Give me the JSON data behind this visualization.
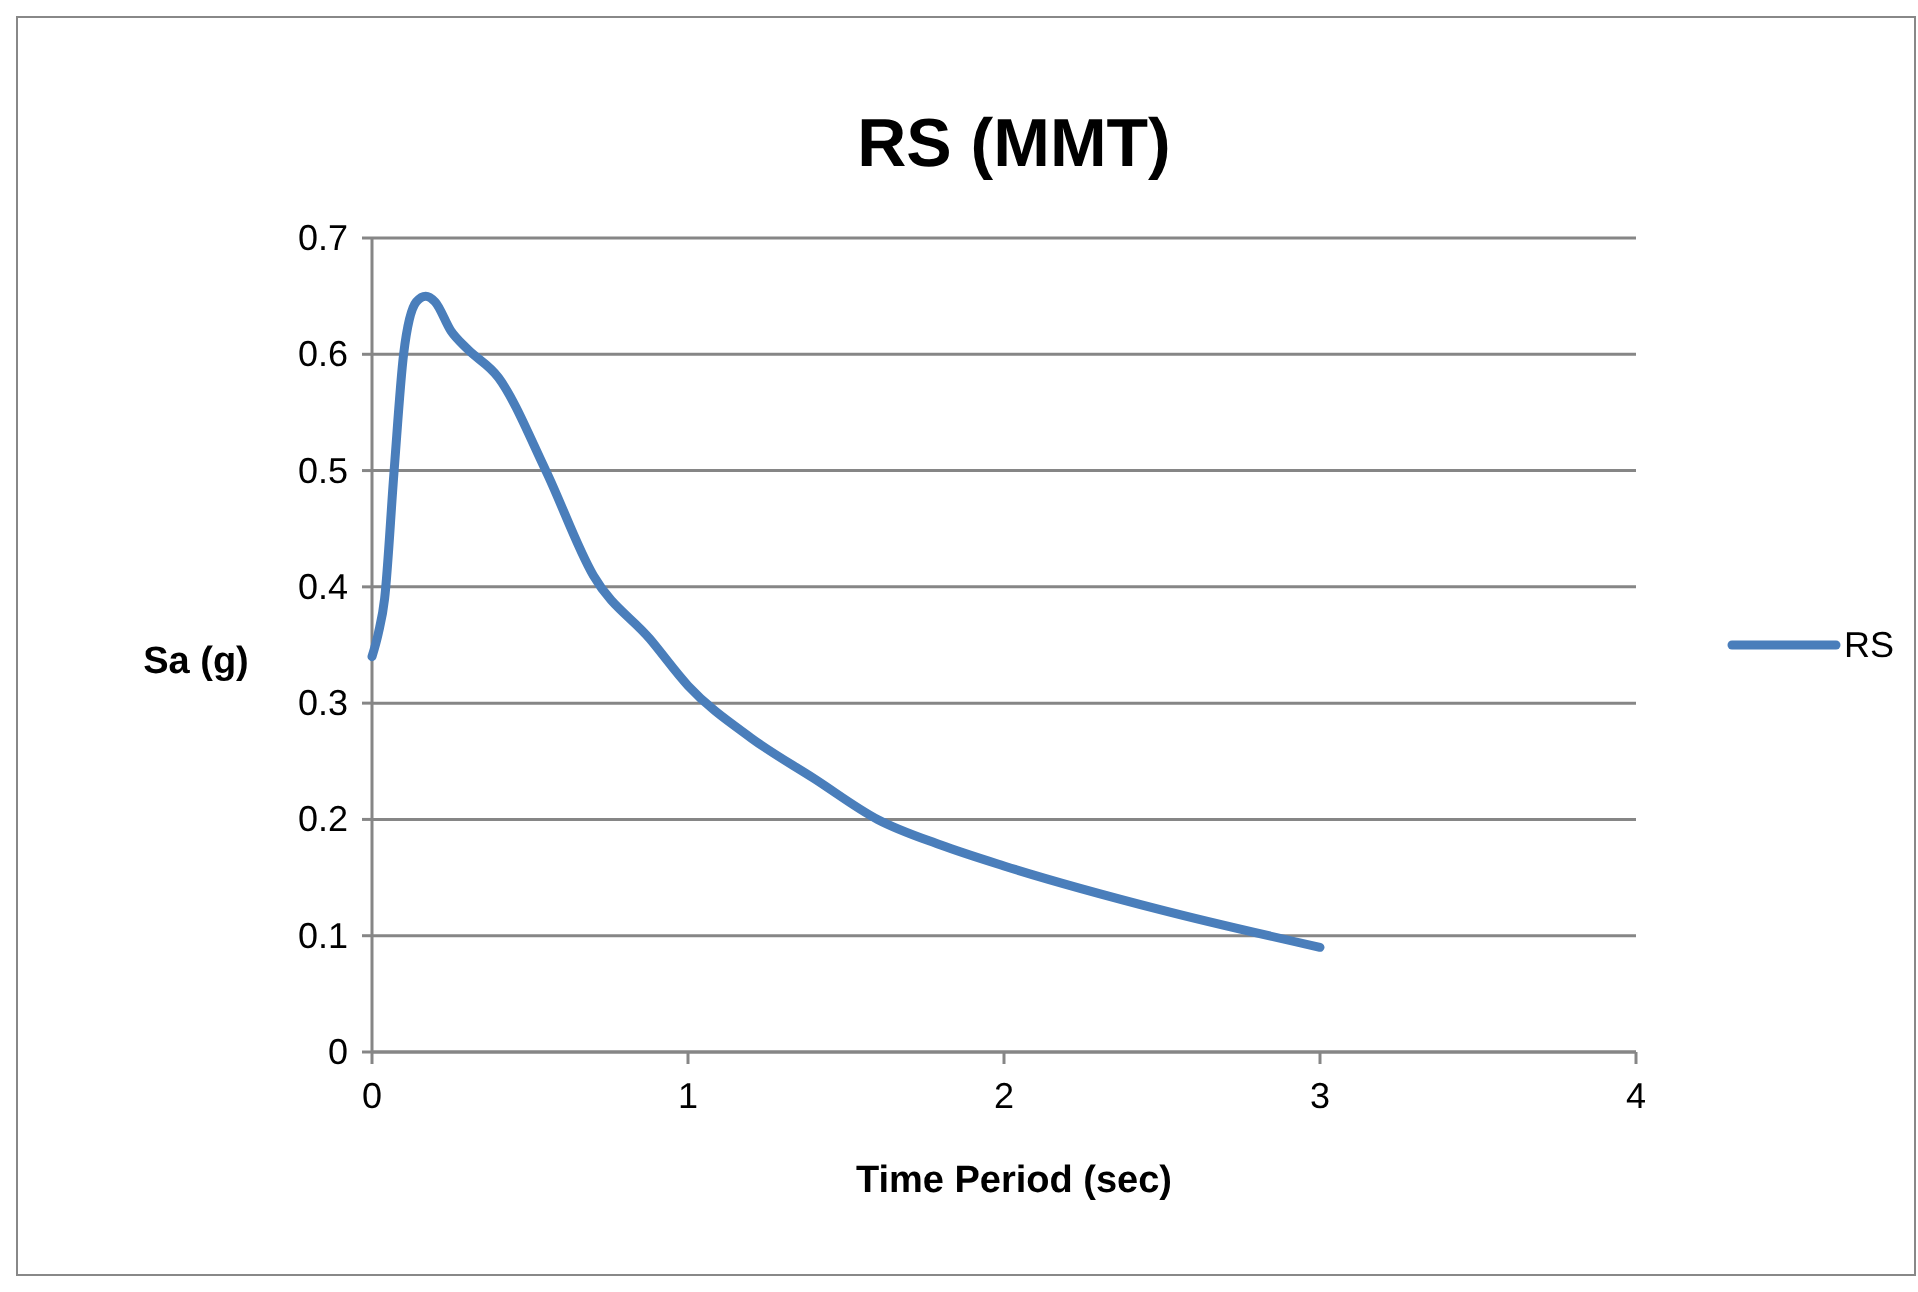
{
  "chart_data": {
    "type": "line",
    "title": "RS (MMT)",
    "xlabel": "Time Period (sec)",
    "ylabel": "Sa (g)",
    "xlim": [
      0,
      4
    ],
    "xticks": [
      0,
      1,
      2,
      3,
      4
    ],
    "ylim": [
      0,
      0.7
    ],
    "yticks": [
      0,
      0.1,
      0.2,
      0.3,
      0.4,
      0.5,
      0.6,
      0.7
    ],
    "grid": "y",
    "legend": "right",
    "marker": "none",
    "series": [
      {
        "name": "RS",
        "color": "#4a7ebb",
        "x": [
          0,
          0.02,
          0.04,
          0.07,
          0.1,
          0.14,
          0.17,
          0.2,
          0.25,
          0.3,
          0.4,
          0.55,
          0.7,
          0.88,
          1.0,
          1.2,
          1.4,
          1.6,
          1.8,
          2.0,
          2.5,
          3.0
        ],
        "values": [
          0.34,
          0.36,
          0.39,
          0.5,
          0.6,
          0.645,
          0.65,
          0.645,
          0.62,
          0.605,
          0.58,
          0.5,
          0.41,
          0.355,
          0.315,
          0.27,
          0.235,
          0.2,
          0.178,
          0.16,
          0.122,
          0.09
        ]
      }
    ]
  }
}
